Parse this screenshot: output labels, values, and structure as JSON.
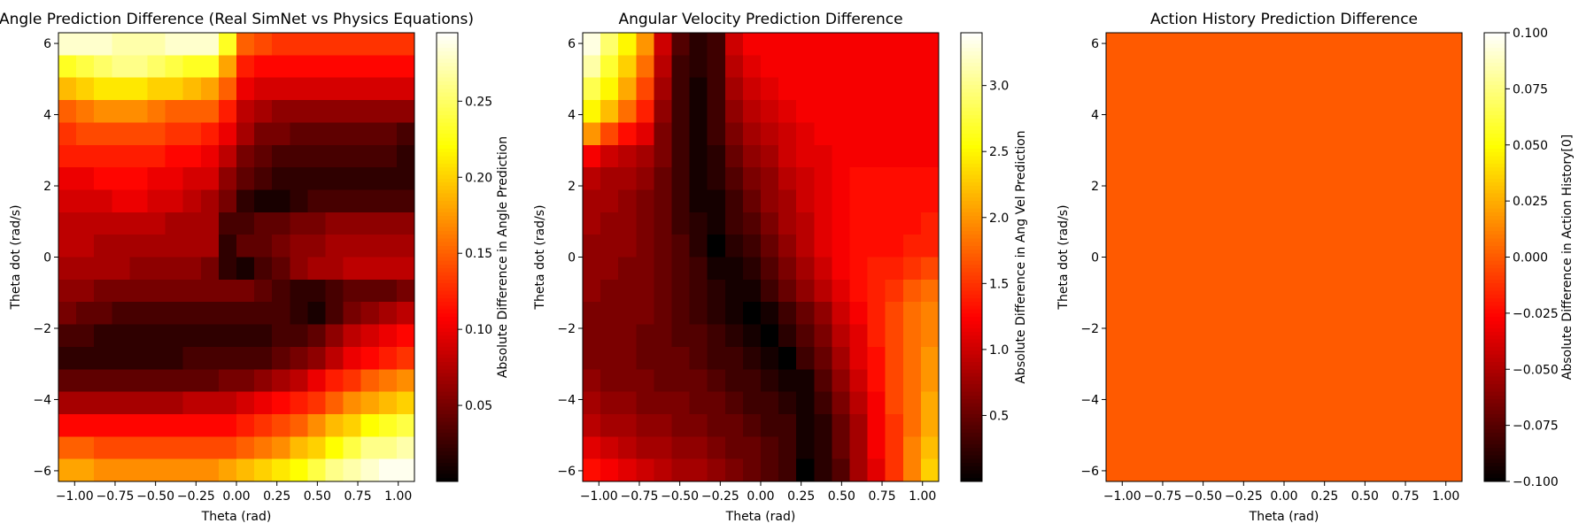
{
  "chart_data": [
    {
      "type": "heatmap",
      "title": "Angle Prediction Difference (Real SimNet vs Physics Equations)",
      "xlabel": "Theta (rad)",
      "ylabel": "Theta dot (rad/s)",
      "xlim": [
        -1.1,
        1.1
      ],
      "ylim": [
        -6.3,
        6.3
      ],
      "x_ticks": [
        -1.0,
        -0.75,
        -0.5,
        -0.25,
        0.0,
        0.25,
        0.5,
        0.75,
        1.0
      ],
      "x_tick_labels": [
        "−1.00",
        "−0.75",
        "−0.50",
        "−0.25",
        "0.00",
        "0.25",
        "0.50",
        "0.75",
        "1.00"
      ],
      "y_ticks": [
        -6,
        -4,
        -2,
        0,
        2,
        4,
        6
      ],
      "y_tick_labels": [
        "−6",
        "−4",
        "−2",
        "0",
        "2",
        "4",
        "6"
      ],
      "colormap": "hot",
      "colorbar_label": "Absolute Difference in Angle Prediction",
      "colorbar_range": [
        0.0,
        0.295
      ],
      "colorbar_ticks": [
        0.05,
        0.1,
        0.15,
        0.2,
        0.25
      ],
      "colorbar_tick_labels": [
        "0.05",
        "0.10",
        "0.15",
        "0.20",
        "0.25"
      ],
      "grid_rows": 20,
      "grid_cols": 20,
      "row_order": "top-to-bottom (theta_dot from +6.3 to -6.3)",
      "values": [
        [
          0.28,
          0.28,
          0.28,
          0.27,
          0.27,
          0.27,
          0.28,
          0.28,
          0.28,
          0.23,
          0.15,
          0.14,
          0.13,
          0.13,
          0.13,
          0.13,
          0.13,
          0.13,
          0.13,
          0.13
        ],
        [
          0.23,
          0.24,
          0.25,
          0.26,
          0.26,
          0.25,
          0.24,
          0.23,
          0.23,
          0.18,
          0.12,
          0.11,
          0.11,
          0.11,
          0.11,
          0.11,
          0.11,
          0.11,
          0.11,
          0.11
        ],
        [
          0.19,
          0.2,
          0.21,
          0.21,
          0.21,
          0.2,
          0.2,
          0.19,
          0.18,
          0.15,
          0.1,
          0.09,
          0.09,
          0.09,
          0.09,
          0.09,
          0.09,
          0.09,
          0.09,
          0.09
        ],
        [
          0.15,
          0.16,
          0.17,
          0.17,
          0.17,
          0.16,
          0.15,
          0.15,
          0.15,
          0.12,
          0.08,
          0.07,
          0.06,
          0.06,
          0.06,
          0.06,
          0.06,
          0.06,
          0.06,
          0.06
        ],
        [
          0.13,
          0.14,
          0.14,
          0.14,
          0.14,
          0.14,
          0.13,
          0.13,
          0.12,
          0.1,
          0.07,
          0.05,
          0.05,
          0.04,
          0.04,
          0.04,
          0.04,
          0.04,
          0.04,
          0.03
        ],
        [
          0.12,
          0.12,
          0.12,
          0.12,
          0.12,
          0.12,
          0.11,
          0.11,
          0.1,
          0.08,
          0.05,
          0.04,
          0.03,
          0.03,
          0.03,
          0.03,
          0.03,
          0.03,
          0.03,
          0.02
        ],
        [
          0.1,
          0.1,
          0.11,
          0.11,
          0.11,
          0.1,
          0.1,
          0.09,
          0.09,
          0.06,
          0.04,
          0.03,
          0.02,
          0.02,
          0.02,
          0.02,
          0.02,
          0.02,
          0.02,
          0.02
        ],
        [
          0.09,
          0.09,
          0.09,
          0.1,
          0.1,
          0.09,
          0.09,
          0.08,
          0.07,
          0.05,
          0.02,
          0.01,
          0.01,
          0.02,
          0.03,
          0.03,
          0.03,
          0.03,
          0.03,
          0.03
        ],
        [
          0.08,
          0.08,
          0.08,
          0.08,
          0.08,
          0.08,
          0.07,
          0.07,
          0.07,
          0.03,
          0.03,
          0.04,
          0.04,
          0.05,
          0.05,
          0.06,
          0.06,
          0.06,
          0.06,
          0.06
        ],
        [
          0.08,
          0.08,
          0.07,
          0.07,
          0.07,
          0.07,
          0.07,
          0.07,
          0.07,
          0.02,
          0.04,
          0.04,
          0.05,
          0.06,
          0.06,
          0.07,
          0.07,
          0.07,
          0.07,
          0.07
        ],
        [
          0.07,
          0.07,
          0.07,
          0.07,
          0.06,
          0.06,
          0.06,
          0.06,
          0.05,
          0.02,
          0.01,
          0.03,
          0.04,
          0.06,
          0.07,
          0.07,
          0.08,
          0.08,
          0.08,
          0.08
        ],
        [
          0.06,
          0.06,
          0.05,
          0.05,
          0.05,
          0.05,
          0.05,
          0.05,
          0.05,
          0.05,
          0.05,
          0.04,
          0.03,
          0.02,
          0.02,
          0.03,
          0.04,
          0.04,
          0.04,
          0.05
        ],
        [
          0.05,
          0.04,
          0.04,
          0.03,
          0.03,
          0.03,
          0.03,
          0.03,
          0.03,
          0.03,
          0.03,
          0.03,
          0.03,
          0.02,
          0.01,
          0.03,
          0.05,
          0.06,
          0.07,
          0.08
        ],
        [
          0.03,
          0.03,
          0.02,
          0.02,
          0.02,
          0.02,
          0.02,
          0.02,
          0.02,
          0.02,
          0.02,
          0.02,
          0.03,
          0.03,
          0.04,
          0.06,
          0.08,
          0.09,
          0.1,
          0.11
        ],
        [
          0.02,
          0.02,
          0.02,
          0.02,
          0.02,
          0.02,
          0.02,
          0.03,
          0.03,
          0.03,
          0.03,
          0.03,
          0.04,
          0.05,
          0.06,
          0.08,
          0.1,
          0.11,
          0.12,
          0.13
        ],
        [
          0.04,
          0.04,
          0.04,
          0.04,
          0.04,
          0.04,
          0.04,
          0.04,
          0.04,
          0.05,
          0.05,
          0.06,
          0.07,
          0.08,
          0.1,
          0.12,
          0.13,
          0.15,
          0.16,
          0.17
        ],
        [
          0.07,
          0.07,
          0.07,
          0.07,
          0.07,
          0.07,
          0.07,
          0.08,
          0.08,
          0.08,
          0.09,
          0.1,
          0.11,
          0.12,
          0.13,
          0.15,
          0.17,
          0.18,
          0.19,
          0.2
        ],
        [
          0.11,
          0.11,
          0.11,
          0.11,
          0.11,
          0.11,
          0.11,
          0.11,
          0.11,
          0.11,
          0.12,
          0.13,
          0.14,
          0.15,
          0.17,
          0.19,
          0.2,
          0.22,
          0.23,
          0.24
        ],
        [
          0.15,
          0.15,
          0.14,
          0.14,
          0.14,
          0.14,
          0.14,
          0.14,
          0.14,
          0.14,
          0.15,
          0.16,
          0.17,
          0.19,
          0.2,
          0.22,
          0.24,
          0.26,
          0.26,
          0.27
        ],
        [
          0.18,
          0.18,
          0.17,
          0.17,
          0.17,
          0.17,
          0.17,
          0.17,
          0.17,
          0.18,
          0.19,
          0.2,
          0.21,
          0.22,
          0.24,
          0.26,
          0.27,
          0.28,
          0.29,
          0.29
        ]
      ]
    },
    {
      "type": "heatmap",
      "title": "Angular Velocity Prediction Difference",
      "xlabel": "Theta (rad)",
      "ylabel": "Theta dot (rad/s)",
      "xlim": [
        -1.1,
        1.1
      ],
      "ylim": [
        -6.3,
        6.3
      ],
      "x_ticks": [
        -1.0,
        -0.75,
        -0.5,
        -0.25,
        0.0,
        0.25,
        0.5,
        0.75,
        1.0
      ],
      "x_tick_labels": [
        "−1.00",
        "−0.75",
        "−0.50",
        "−0.25",
        "0.00",
        "0.25",
        "0.50",
        "0.75",
        "1.00"
      ],
      "y_ticks": [
        -6,
        -4,
        -2,
        0,
        2,
        4,
        6
      ],
      "y_tick_labels": [
        "−6",
        "−4",
        "−2",
        "0",
        "2",
        "4",
        "6"
      ],
      "colormap": "hot",
      "colorbar_label": "Absolute Difference in Ang Vel Prediction",
      "colorbar_range": [
        0.0,
        3.4
      ],
      "colorbar_ticks": [
        0.5,
        1.0,
        1.5,
        2.0,
        2.5,
        3.0
      ],
      "colorbar_tick_labels": [
        "0.5",
        "1.0",
        "1.5",
        "2.0",
        "2.5",
        "3.0"
      ],
      "grid_rows": 20,
      "grid_cols": 20,
      "row_order": "top-to-bottom (theta_dot from +6.3 to -6.3)",
      "values": [
        [
          3.3,
          2.9,
          2.5,
          2.0,
          1.0,
          0.4,
          0.2,
          0.3,
          1.0,
          1.2,
          1.2,
          1.2,
          1.2,
          1.2,
          1.2,
          1.2,
          1.2,
          1.2,
          1.2,
          1.2
        ],
        [
          3.1,
          2.7,
          2.3,
          1.8,
          0.9,
          0.3,
          0.2,
          0.3,
          0.9,
          1.1,
          1.2,
          1.2,
          1.2,
          1.2,
          1.2,
          1.2,
          1.2,
          1.2,
          1.2,
          1.2
        ],
        [
          2.8,
          2.5,
          2.1,
          1.6,
          0.8,
          0.3,
          0.1,
          0.3,
          0.8,
          1.0,
          1.1,
          1.2,
          1.2,
          1.2,
          1.2,
          1.2,
          1.2,
          1.2,
          1.2,
          1.2
        ],
        [
          2.5,
          2.2,
          1.8,
          1.4,
          0.7,
          0.3,
          0.1,
          0.3,
          0.7,
          0.9,
          1.0,
          1.1,
          1.2,
          1.2,
          1.2,
          1.2,
          1.2,
          1.2,
          1.2,
          1.2
        ],
        [
          2.0,
          1.6,
          1.3,
          1.1,
          0.6,
          0.3,
          0.1,
          0.3,
          0.6,
          0.8,
          0.9,
          1.0,
          1.1,
          1.2,
          1.2,
          1.2,
          1.2,
          1.2,
          1.2,
          1.2
        ],
        [
          1.2,
          1.0,
          0.9,
          0.8,
          0.6,
          0.3,
          0.1,
          0.2,
          0.5,
          0.7,
          0.8,
          1.0,
          1.1,
          1.1,
          1.2,
          1.2,
          1.2,
          1.2,
          1.2,
          1.2
        ],
        [
          0.9,
          0.8,
          0.8,
          0.7,
          0.5,
          0.3,
          0.1,
          0.2,
          0.4,
          0.6,
          0.7,
          0.9,
          1.0,
          1.1,
          1.2,
          1.3,
          1.3,
          1.3,
          1.3,
          1.3
        ],
        [
          0.8,
          0.8,
          0.7,
          0.6,
          0.5,
          0.3,
          0.1,
          0.1,
          0.3,
          0.5,
          0.7,
          0.8,
          1.0,
          1.1,
          1.2,
          1.3,
          1.3,
          1.3,
          1.3,
          1.3
        ],
        [
          0.8,
          0.7,
          0.7,
          0.6,
          0.5,
          0.3,
          0.2,
          0.1,
          0.3,
          0.4,
          0.6,
          0.8,
          0.9,
          1.1,
          1.2,
          1.3,
          1.3,
          1.3,
          1.3,
          1.4
        ],
        [
          0.7,
          0.7,
          0.7,
          0.6,
          0.5,
          0.4,
          0.2,
          0.0,
          0.2,
          0.3,
          0.5,
          0.7,
          0.9,
          1.1,
          1.2,
          1.3,
          1.3,
          1.3,
          1.4,
          1.4
        ],
        [
          0.7,
          0.7,
          0.6,
          0.6,
          0.5,
          0.4,
          0.3,
          0.1,
          0.1,
          0.2,
          0.4,
          0.6,
          0.8,
          1.0,
          1.2,
          1.3,
          1.4,
          1.4,
          1.5,
          1.6
        ],
        [
          0.7,
          0.6,
          0.6,
          0.6,
          0.5,
          0.4,
          0.3,
          0.2,
          0.1,
          0.1,
          0.3,
          0.5,
          0.7,
          0.9,
          1.1,
          1.3,
          1.4,
          1.5,
          1.7,
          1.8
        ],
        [
          0.6,
          0.6,
          0.6,
          0.6,
          0.5,
          0.4,
          0.3,
          0.2,
          0.1,
          0.0,
          0.1,
          0.3,
          0.5,
          0.7,
          1.0,
          1.2,
          1.4,
          1.6,
          1.8,
          1.9
        ],
        [
          0.6,
          0.6,
          0.6,
          0.5,
          0.5,
          0.4,
          0.4,
          0.3,
          0.2,
          0.1,
          0.0,
          0.2,
          0.4,
          0.6,
          0.9,
          1.1,
          1.4,
          1.6,
          1.8,
          1.9
        ],
        [
          0.6,
          0.6,
          0.6,
          0.5,
          0.5,
          0.5,
          0.4,
          0.3,
          0.3,
          0.2,
          0.1,
          0.0,
          0.3,
          0.5,
          0.8,
          1.1,
          1.3,
          1.6,
          1.8,
          2.0
        ],
        [
          0.7,
          0.6,
          0.6,
          0.6,
          0.5,
          0.5,
          0.5,
          0.4,
          0.3,
          0.3,
          0.2,
          0.1,
          0.1,
          0.4,
          0.7,
          1.0,
          1.3,
          1.6,
          1.8,
          2.0
        ],
        [
          0.8,
          0.7,
          0.7,
          0.6,
          0.6,
          0.6,
          0.5,
          0.5,
          0.4,
          0.3,
          0.3,
          0.2,
          0.1,
          0.3,
          0.6,
          0.9,
          1.2,
          1.6,
          1.8,
          2.1
        ],
        [
          0.9,
          0.8,
          0.8,
          0.7,
          0.7,
          0.6,
          0.6,
          0.5,
          0.5,
          0.4,
          0.3,
          0.3,
          0.1,
          0.2,
          0.5,
          0.8,
          1.2,
          1.5,
          1.8,
          2.1
        ],
        [
          1.1,
          1.0,
          0.9,
          0.8,
          0.8,
          0.7,
          0.7,
          0.6,
          0.5,
          0.5,
          0.4,
          0.3,
          0.1,
          0.2,
          0.5,
          0.8,
          1.2,
          1.5,
          1.9,
          2.2
        ],
        [
          1.3,
          1.2,
          1.1,
          1.0,
          0.9,
          0.8,
          0.8,
          0.7,
          0.6,
          0.5,
          0.4,
          0.3,
          0.0,
          0.2,
          0.4,
          0.8,
          1.1,
          1.5,
          1.9,
          2.3
        ]
      ]
    },
    {
      "type": "heatmap",
      "title": "Action History Prediction Difference",
      "xlabel": "Theta (rad)",
      "ylabel": "Theta dot (rad/s)",
      "xlim": [
        -1.1,
        1.1
      ],
      "ylim": [
        -6.3,
        6.3
      ],
      "x_ticks": [
        -1.0,
        -0.75,
        -0.5,
        -0.25,
        0.0,
        0.25,
        0.5,
        0.75,
        1.0
      ],
      "x_tick_labels": [
        "−1.00",
        "−0.75",
        "−0.50",
        "−0.25",
        "0.00",
        "0.25",
        "0.50",
        "0.75",
        "1.00"
      ],
      "y_ticks": [
        -6,
        -4,
        -2,
        0,
        2,
        4,
        6
      ],
      "y_tick_labels": [
        "−6",
        "−4",
        "−2",
        "0",
        "2",
        "4",
        "6"
      ],
      "colormap": "hot",
      "colorbar_label": "Absolute Difference in Action History[0]",
      "colorbar_range": [
        -0.1,
        0.1
      ],
      "colorbar_ticks": [
        -0.1,
        -0.075,
        -0.05,
        -0.025,
        0.0,
        0.025,
        0.05,
        0.075,
        0.1
      ],
      "colorbar_tick_labels": [
        "−0.100",
        "−0.075",
        "−0.050",
        "−0.025",
        "0.000",
        "0.025",
        "0.050",
        "0.075",
        "0.100"
      ],
      "uniform_value": 0.0,
      "grid_rows": 1,
      "grid_cols": 1,
      "values": [
        [
          0.0
        ]
      ]
    }
  ]
}
